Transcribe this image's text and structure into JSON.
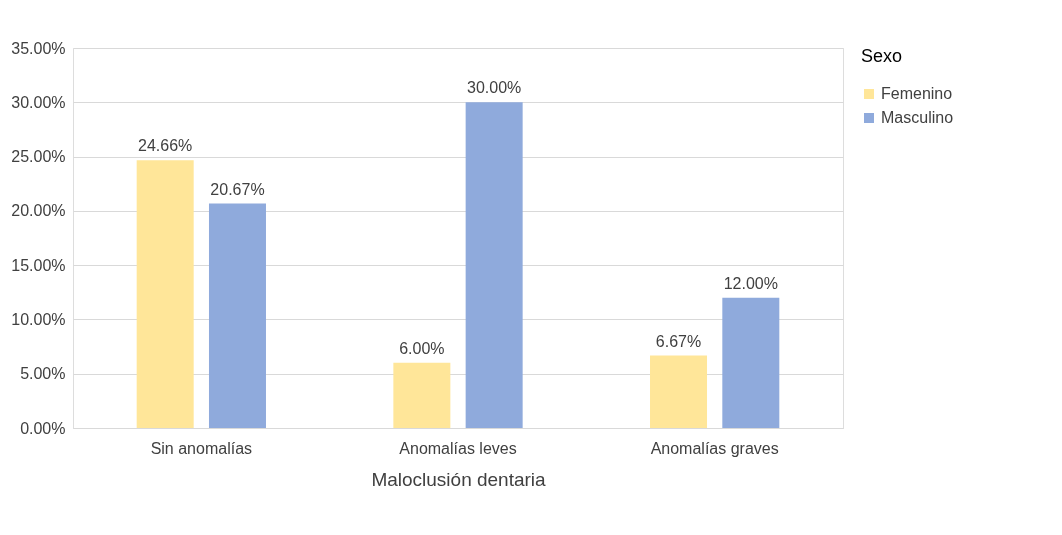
{
  "chart_data": {
    "type": "bar",
    "xlabel": "Maloclusión dentaria",
    "legend_title": "Sexo",
    "categories": [
      "Sin anomalías",
      "Anomalías leves",
      "Anomalías graves"
    ],
    "series": [
      {
        "name": "Femenino",
        "color": "#ffe699",
        "values": [
          24.66,
          6.0,
          6.67
        ],
        "value_labels": [
          "24.66%",
          "6.00%",
          "6.67%"
        ]
      },
      {
        "name": "Masculino",
        "color": "#8faadc",
        "values": [
          20.67,
          30.0,
          12.0
        ],
        "value_labels": [
          "20.67%",
          "30.00%",
          "12.00%"
        ]
      }
    ],
    "ylim": [
      0,
      35
    ],
    "yticks": [
      {
        "value": 0,
        "label": "0.00%"
      },
      {
        "value": 5,
        "label": "5.00%"
      },
      {
        "value": 10,
        "label": "10.00%"
      },
      {
        "value": 15,
        "label": "15.00%"
      },
      {
        "value": 20,
        "label": "20.00%"
      },
      {
        "value": 25,
        "label": "25.00%"
      },
      {
        "value": 30,
        "label": "30.00%"
      },
      {
        "value": 35,
        "label": "35.00%"
      }
    ],
    "grid": "y",
    "legend": "right"
  }
}
